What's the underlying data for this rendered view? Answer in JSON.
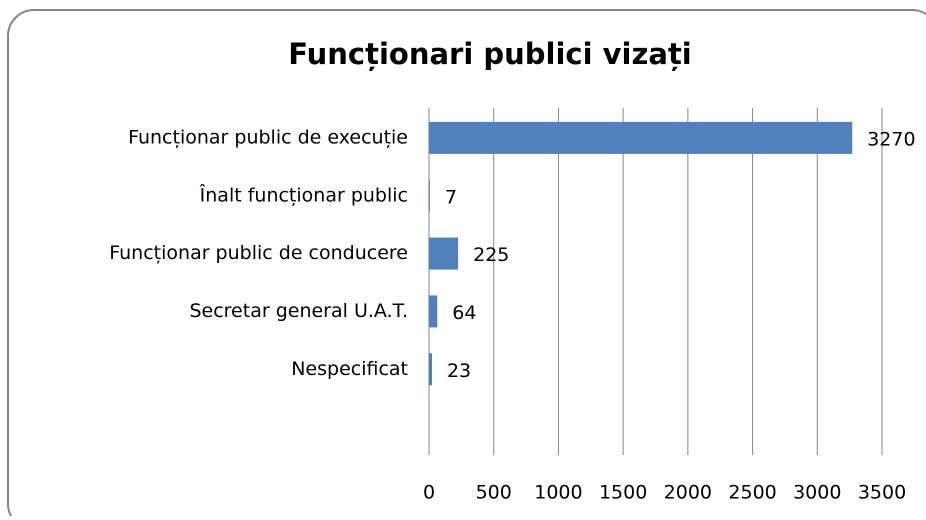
{
  "chart_data": {
    "type": "bar",
    "orientation": "horizontal",
    "title": "Funcționari publici vizați",
    "categories": [
      "Funcționar public de execuție",
      "Înalt funcționar public",
      "Funcționar public de conducere",
      "Secretar general U.A.T.",
      "Nespecificat",
      null
    ],
    "values": [
      3270,
      7,
      225,
      64,
      23,
      null
    ],
    "color": "#4f81bd",
    "xlim": [
      0,
      3500
    ],
    "xticks": [
      0,
      500,
      1000,
      1500,
      2000,
      2500,
      3000,
      3500
    ],
    "grid": true
  }
}
